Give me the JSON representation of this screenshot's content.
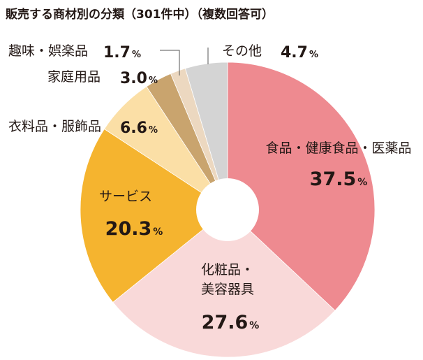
{
  "chart_data": {
    "type": "pie",
    "title": "販売する商材別の分類（301件中）（複数回答可）",
    "categories": [
      "食品・健康食品・医薬品",
      "化粧品・美容器具",
      "サービス",
      "衣料品・服飾品",
      "家庭用品",
      "趣味・娯楽品",
      "その他"
    ],
    "values": [
      37.5,
      27.6,
      20.3,
      6.6,
      3.0,
      1.7,
      4.7
    ],
    "value_labels": [
      "37.5",
      "27.6",
      "20.3",
      "6.6",
      "3.0",
      "1.7",
      "4.7"
    ],
    "unit": "%",
    "colors": [
      "#ee8a90",
      "#f9d9d9",
      "#f5b42f",
      "#fbdfa6",
      "#c9a46e",
      "#ecd8c0",
      "#d4d4d4"
    ],
    "label_lines": [
      [
        "食品・健康食品・医薬品"
      ],
      [
        "化粧品・",
        "美容器具"
      ],
      [
        "サービス"
      ],
      [
        "衣料品・服飾品"
      ],
      [
        "家庭用品"
      ],
      [
        "趣味・娯楽品"
      ],
      [
        "その他"
      ]
    ],
    "start": "12 o'clock",
    "direction": "clockwise",
    "donut": true,
    "legend": "none"
  }
}
